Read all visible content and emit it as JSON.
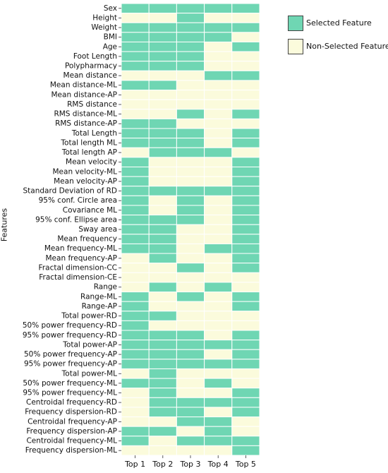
{
  "chart_data": {
    "type": "heatmap",
    "ylabel": "Features",
    "xlabel": "",
    "columns": [
      "Top 1",
      "Top 2",
      "Top 3",
      "Top 4",
      "Top 5"
    ],
    "legend": [
      {
        "label": "Selected Feature",
        "color": "#6fd6b3",
        "value": 1
      },
      {
        "label": "Non-Selected Feature",
        "color": "#fbfbdc",
        "value": 0
      }
    ],
    "features": [
      "Sex",
      "Height",
      "Weight",
      "BMI",
      "Age",
      "Foot Length",
      "Polypharmacy",
      "Mean distance",
      "Mean distance-ML",
      "Mean distance-AP",
      "RMS distance",
      "RMS distance-ML",
      "RMS distance-AP",
      "Total Length",
      "Total length ML",
      "Total length AP",
      "Mean velocity",
      "Mean velocity-ML",
      "Mean velocity-AP",
      "Standard Deviation of RD",
      "95% conf. Circle area",
      "Covariance ML",
      "95% conf. Ellipse area",
      "Sway area",
      "Mean frequency",
      "Mean frequency-ML",
      "Mean frequency-AP",
      "Fractal dimension-CC",
      "Fractal dimension-CE",
      "Range",
      "Range-ML",
      "Range-AP",
      "Total power-RD",
      "50% power frequency-RD",
      "95% power frequency-RD",
      "Total power-AP",
      "50% power frequency-AP",
      "95% power frequency-AP",
      "Total power-ML",
      "50% power frequency-ML",
      "95% power frequency-ML",
      "Centroidal frequency-RD",
      "Frequency dispersion-RD",
      "Centroidal frequency-AP",
      "Frequency dispersion-AP",
      "Centroidal frequency-ML",
      "Frequency dispersion-ML"
    ],
    "values": [
      [
        1,
        1,
        1,
        1,
        1
      ],
      [
        0,
        0,
        1,
        0,
        0
      ],
      [
        1,
        1,
        1,
        1,
        1
      ],
      [
        1,
        1,
        1,
        1,
        0
      ],
      [
        1,
        1,
        1,
        0,
        1
      ],
      [
        1,
        1,
        1,
        0,
        0
      ],
      [
        1,
        1,
        1,
        0,
        0
      ],
      [
        0,
        0,
        0,
        1,
        1
      ],
      [
        1,
        1,
        0,
        0,
        0
      ],
      [
        0,
        0,
        0,
        0,
        0
      ],
      [
        0,
        0,
        0,
        0,
        0
      ],
      [
        0,
        0,
        1,
        0,
        1
      ],
      [
        1,
        1,
        0,
        0,
        0
      ],
      [
        1,
        1,
        1,
        0,
        1
      ],
      [
        1,
        1,
        1,
        0,
        1
      ],
      [
        0,
        1,
        1,
        1,
        0
      ],
      [
        1,
        0,
        0,
        0,
        1
      ],
      [
        1,
        0,
        0,
        0,
        1
      ],
      [
        1,
        0,
        0,
        0,
        1
      ],
      [
        1,
        1,
        1,
        1,
        1
      ],
      [
        1,
        0,
        1,
        0,
        1
      ],
      [
        1,
        0,
        1,
        0,
        1
      ],
      [
        1,
        1,
        1,
        0,
        1
      ],
      [
        1,
        1,
        0,
        0,
        1
      ],
      [
        1,
        1,
        0,
        0,
        1
      ],
      [
        1,
        1,
        0,
        1,
        1
      ],
      [
        0,
        1,
        0,
        0,
        1
      ],
      [
        0,
        0,
        1,
        0,
        1
      ],
      [
        0,
        0,
        0,
        0,
        0
      ],
      [
        0,
        1,
        0,
        1,
        0
      ],
      [
        1,
        0,
        1,
        0,
        1
      ],
      [
        1,
        0,
        0,
        0,
        1
      ],
      [
        1,
        1,
        0,
        0,
        0
      ],
      [
        1,
        0,
        0,
        0,
        0
      ],
      [
        1,
        1,
        1,
        0,
        1
      ],
      [
        1,
        1,
        1,
        1,
        1
      ],
      [
        1,
        1,
        1,
        0,
        1
      ],
      [
        1,
        1,
        1,
        1,
        1
      ],
      [
        0,
        1,
        0,
        0,
        0
      ],
      [
        1,
        1,
        0,
        1,
        0
      ],
      [
        0,
        1,
        0,
        0,
        1
      ],
      [
        0,
        1,
        1,
        1,
        1
      ],
      [
        0,
        1,
        1,
        0,
        1
      ],
      [
        0,
        0,
        1,
        1,
        0
      ],
      [
        1,
        1,
        0,
        1,
        0
      ],
      [
        1,
        0,
        1,
        1,
        1
      ],
      [
        0,
        0,
        0,
        0,
        1
      ]
    ]
  }
}
